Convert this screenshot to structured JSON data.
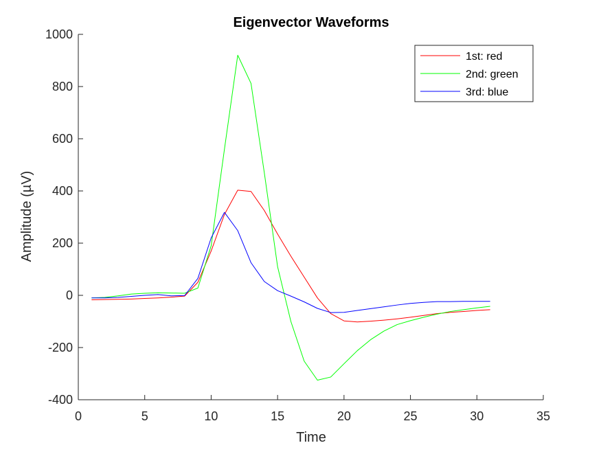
{
  "chart_data": {
    "type": "line",
    "title": "Eigenvector Waveforms",
    "xlabel": "Time",
    "ylabel": "Amplitude (µV)",
    "xlim": [
      0,
      35
    ],
    "ylim": [
      -400,
      1000
    ],
    "xticks": [
      0,
      5,
      10,
      15,
      20,
      25,
      30,
      35
    ],
    "yticks": [
      -400,
      -200,
      0,
      200,
      400,
      600,
      800,
      1000
    ],
    "grid": false,
    "legend_position": "top-right",
    "x": [
      1,
      2,
      3,
      4,
      5,
      6,
      7,
      8,
      9,
      10,
      11,
      12,
      13,
      14,
      15,
      16,
      17,
      18,
      19,
      20,
      21,
      22,
      23,
      24,
      25,
      26,
      27,
      28,
      29,
      30,
      31
    ],
    "series": [
      {
        "name": "1st: red",
        "color": "#ff0000",
        "values": [
          -17,
          -16,
          -15,
          -14,
          -12,
          -10,
          -7,
          -3,
          50,
          170,
          310,
          403,
          398,
          325,
          235,
          150,
          70,
          -10,
          -70,
          -98,
          -102,
          -99,
          -95,
          -90,
          -84,
          -77,
          -70,
          -65,
          -62,
          -58,
          -55
        ]
      },
      {
        "name": "2nd: green",
        "color": "#00ff00",
        "values": [
          -10,
          -8,
          -2,
          5,
          8,
          10,
          9,
          8,
          28,
          190,
          560,
          920,
          812,
          470,
          110,
          -100,
          -252,
          -325,
          -313,
          -262,
          -212,
          -170,
          -137,
          -112,
          -97,
          -84,
          -72,
          -62,
          -55,
          -48,
          -42
        ]
      },
      {
        "name": "3rd: blue",
        "color": "#0000ff",
        "values": [
          -10,
          -10,
          -8,
          -4,
          0,
          3,
          -2,
          -1,
          65,
          220,
          318,
          248,
          125,
          53,
          18,
          -3,
          -25,
          -50,
          -66,
          -65,
          -58,
          -51,
          -44,
          -37,
          -31,
          -27,
          -24,
          -24,
          -23,
          -23,
          -23
        ]
      }
    ]
  }
}
